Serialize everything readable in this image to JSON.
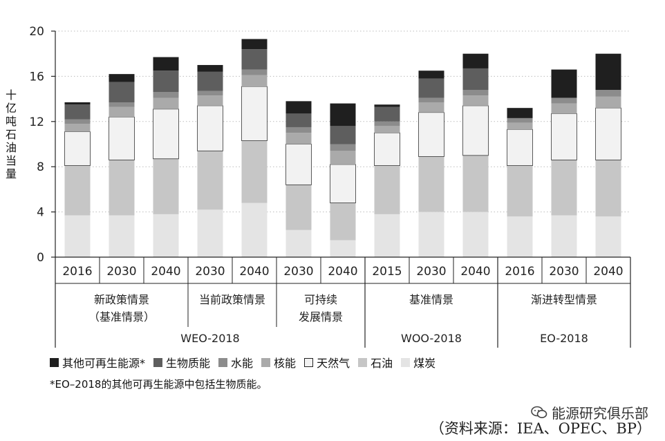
{
  "chart_data": {
    "type": "bar",
    "stacked": true,
    "ylabel": "十亿吨石油当量",
    "ylim": [
      0,
      20
    ],
    "yticks": [
      0,
      4,
      8,
      12,
      16,
      20
    ],
    "grid": "horizontal dotted",
    "categories": [
      "2016",
      "2030",
      "2040",
      "2030",
      "2040",
      "2030",
      "2040",
      "2015",
      "2030",
      "2040",
      "2016",
      "2030",
      "2040"
    ],
    "scenario_groups": [
      {
        "label": [
          "新政策情景",
          "（基准情景）"
        ],
        "start": 0,
        "end": 2
      },
      {
        "label": [
          "当前政策情景"
        ],
        "start": 3,
        "end": 4
      },
      {
        "label": [
          "可持续",
          "发展情景"
        ],
        "start": 5,
        "end": 6
      },
      {
        "label": [
          "基准情景"
        ],
        "start": 7,
        "end": 9
      },
      {
        "label": [
          "渐进转型情景"
        ],
        "start": 10,
        "end": 12
      }
    ],
    "source_groups": [
      {
        "label": "WEO-2018",
        "start": 0,
        "end": 6
      },
      {
        "label": "WOO-2018",
        "start": 7,
        "end": 9
      },
      {
        "label": "EO-2018",
        "start": 10,
        "end": 12
      }
    ],
    "series": [
      {
        "name": "煤炭",
        "color": "#e4e4e4",
        "values": [
          3.7,
          3.7,
          3.8,
          4.2,
          4.8,
          2.4,
          1.5,
          3.8,
          4.0,
          4.0,
          3.6,
          3.7,
          3.6
        ]
      },
      {
        "name": "石油",
        "color": "#c6c6c6",
        "values": [
          4.4,
          4.9,
          4.9,
          5.2,
          5.5,
          4.0,
          3.3,
          4.3,
          4.9,
          5.0,
          4.5,
          4.9,
          5.0
        ]
      },
      {
        "name": "天然气",
        "color": "#f2f2f2",
        "values": [
          3.0,
          3.8,
          4.4,
          4.0,
          4.8,
          3.6,
          3.4,
          2.9,
          3.9,
          4.4,
          3.2,
          4.1,
          4.6
        ]
      },
      {
        "name": "核能",
        "color": "#aaaaaa",
        "values": [
          0.7,
          0.9,
          1.0,
          0.9,
          1.0,
          1.0,
          1.2,
          0.6,
          0.9,
          0.9,
          0.6,
          0.9,
          1.0
        ]
      },
      {
        "name": "水能",
        "color": "#8c8c8c",
        "values": [
          0.4,
          0.4,
          0.5,
          0.4,
          0.5,
          0.5,
          0.6,
          0.4,
          0.4,
          0.5,
          0.4,
          0.5,
          0.6
        ]
      },
      {
        "name": "生物质能",
        "color": "#5e5e5e",
        "values": [
          1.3,
          1.8,
          1.9,
          1.7,
          1.8,
          1.2,
          1.6,
          1.3,
          1.7,
          1.9,
          0.0,
          0.0,
          0.0
        ]
      },
      {
        "name": "其他可再生能源*",
        "color": "#1f1f1f",
        "values": [
          0.2,
          0.7,
          1.2,
          0.6,
          0.9,
          1.1,
          2.0,
          0.2,
          0.7,
          1.3,
          0.9,
          2.5,
          3.2
        ]
      }
    ]
  },
  "legend_order": [
    "其他可再生能源*",
    "生物质能",
    "水能",
    "核能",
    "天然气",
    "石油",
    "煤炭"
  ],
  "footnote": "*EO–2018的其他可再生能源中包括生物质能。",
  "watermark": "能源研究俱乐部",
  "source_note": "（资料来源：IEA、OPEC、BP）"
}
